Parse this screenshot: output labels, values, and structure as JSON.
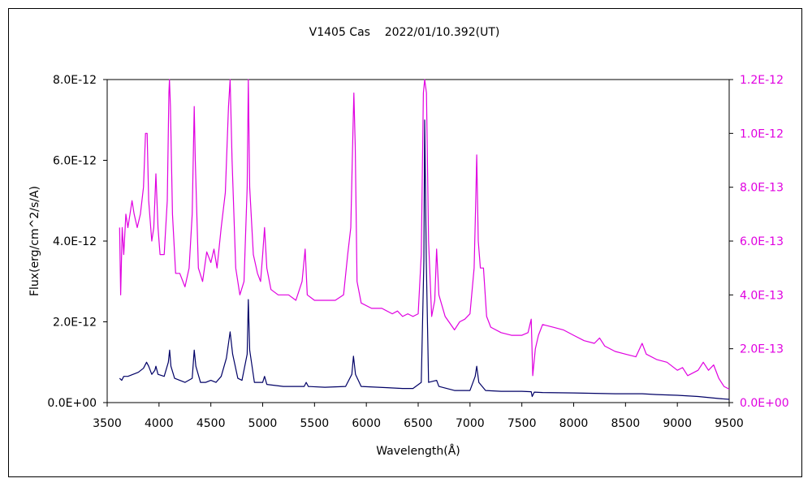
{
  "chart_data": {
    "type": "line",
    "title": "V1405 Cas    2022/01/10.392(UT)",
    "xlabel": "Wavelength(Å)",
    "ylabel_left": "Flux(erg/cm^2/s/A)",
    "xlim": [
      3500,
      9500
    ],
    "ylim_left": [
      0,
      8e-12
    ],
    "ylim_right": [
      0,
      1.2e-12
    ],
    "x_ticks": [
      "3500",
      "4000",
      "4500",
      "5000",
      "5500",
      "6000",
      "6500",
      "7000",
      "7500",
      "8000",
      "8500",
      "9000",
      "9500"
    ],
    "y_ticks_left": [
      "0.0E+00",
      "2.0E-12",
      "4.0E-12",
      "6.0E-12",
      "8.0E-12"
    ],
    "y_ticks_right": [
      "0.0E+00",
      "2.0E-13",
      "4.0E-13",
      "6.0E-13",
      "8.0E-13",
      "1.0E-12",
      "1.2E-12"
    ],
    "grid": false,
    "series": [
      {
        "axis": "left",
        "color": "#000066",
        "points": [
          [
            3620,
            6e-13
          ],
          [
            3640,
            5.5e-13
          ],
          [
            3660,
            6.5e-13
          ],
          [
            3700,
            6.5e-13
          ],
          [
            3750,
            7e-13
          ],
          [
            3800,
            7.5e-13
          ],
          [
            3850,
            8.5e-13
          ],
          [
            3880,
            1e-12
          ],
          [
            3900,
            9e-13
          ],
          [
            3930,
            7e-13
          ],
          [
            3960,
            8e-13
          ],
          [
            3970,
            9e-13
          ],
          [
            3990,
            7e-13
          ],
          [
            4050,
            6.5e-13
          ],
          [
            4090,
            1e-12
          ],
          [
            4102,
            1.3e-12
          ],
          [
            4115,
            9e-13
          ],
          [
            4150,
            6e-13
          ],
          [
            4250,
            5e-13
          ],
          [
            4320,
            6e-13
          ],
          [
            4340,
            1.3e-12
          ],
          [
            4355,
            9e-13
          ],
          [
            4400,
            5e-13
          ],
          [
            4450,
            5e-13
          ],
          [
            4500,
            5.5e-13
          ],
          [
            4550,
            5e-13
          ],
          [
            4600,
            6.5e-13
          ],
          [
            4650,
            1.1e-12
          ],
          [
            4686,
            1.75e-12
          ],
          [
            4710,
            1.2e-12
          ],
          [
            4760,
            6e-13
          ],
          [
            4800,
            5.5e-13
          ],
          [
            4850,
            1.2e-12
          ],
          [
            4861,
            2.55e-12
          ],
          [
            4875,
            1.3e-12
          ],
          [
            4920,
            5e-13
          ],
          [
            5000,
            5e-13
          ],
          [
            5018,
            6.5e-13
          ],
          [
            5040,
            4.5e-13
          ],
          [
            5200,
            4e-13
          ],
          [
            5400,
            4e-13
          ],
          [
            5420,
            5e-13
          ],
          [
            5440,
            4e-13
          ],
          [
            5600,
            3.8e-13
          ],
          [
            5800,
            4e-13
          ],
          [
            5860,
            7e-13
          ],
          [
            5876,
            1.15e-12
          ],
          [
            5895,
            7e-13
          ],
          [
            5950,
            4e-13
          ],
          [
            6200,
            3.7e-13
          ],
          [
            6350,
            3.5e-13
          ],
          [
            6450,
            3.5e-13
          ],
          [
            6530,
            5e-13
          ],
          [
            6555,
            3.5e-12
          ],
          [
            6563,
            7e-12
          ],
          [
            6578,
            3.5e-12
          ],
          [
            6600,
            5e-13
          ],
          [
            6678,
            5.5e-13
          ],
          [
            6700,
            4e-13
          ],
          [
            6850,
            3e-13
          ],
          [
            7000,
            3e-13
          ],
          [
            7050,
            6.5e-13
          ],
          [
            7065,
            9e-13
          ],
          [
            7085,
            5e-13
          ],
          [
            7150,
            3e-13
          ],
          [
            7300,
            2.8e-13
          ],
          [
            7500,
            2.8e-13
          ],
          [
            7590,
            2.7e-13
          ],
          [
            7600,
            1.5e-13
          ],
          [
            7620,
            2.6e-13
          ],
          [
            7700,
            2.5e-13
          ],
          [
            8000,
            2.4e-13
          ],
          [
            8200,
            2.3e-13
          ],
          [
            8400,
            2.2e-13
          ],
          [
            8500,
            2.2e-13
          ],
          [
            8660,
            2.2e-13
          ],
          [
            8800,
            2e-13
          ],
          [
            9000,
            1.8e-13
          ],
          [
            9200,
            1.5e-13
          ],
          [
            9400,
            1e-13
          ],
          [
            9500,
            8e-14
          ]
        ]
      },
      {
        "axis": "right",
        "color": "#e000e0",
        "points": [
          [
            3620,
            6.5e-13
          ],
          [
            3630,
            4e-13
          ],
          [
            3645,
            6.5e-13
          ],
          [
            3660,
            5.5e-13
          ],
          [
            3680,
            7e-13
          ],
          [
            3700,
            6.5e-13
          ],
          [
            3720,
            7e-13
          ],
          [
            3740,
            7.5e-13
          ],
          [
            3760,
            7e-13
          ],
          [
            3790,
            6.5e-13
          ],
          [
            3820,
            7e-13
          ],
          [
            3850,
            8e-13
          ],
          [
            3870,
            1e-12
          ],
          [
            3885,
            1e-12
          ],
          [
            3900,
            7.5e-13
          ],
          [
            3930,
            6e-13
          ],
          [
            3950,
            6.5e-13
          ],
          [
            3970,
            8.5e-13
          ],
          [
            3990,
            6.5e-13
          ],
          [
            4010,
            5.5e-13
          ],
          [
            4050,
            5.5e-13
          ],
          [
            4080,
            7.5e-13
          ],
          [
            4095,
            1.15e-12
          ],
          [
            4101,
            1.2e-12
          ],
          [
            4110,
            1.1e-12
          ],
          [
            4130,
            7e-13
          ],
          [
            4160,
            4.8e-13
          ],
          [
            4200,
            4.8e-13
          ],
          [
            4250,
            4.3e-13
          ],
          [
            4290,
            5e-13
          ],
          [
            4320,
            7e-13
          ],
          [
            4340,
            1.1e-12
          ],
          [
            4350,
            9e-13
          ],
          [
            4380,
            5e-13
          ],
          [
            4420,
            4.5e-13
          ],
          [
            4460,
            5.6e-13
          ],
          [
            4500,
            5.2e-13
          ],
          [
            4530,
            5.7e-13
          ],
          [
            4560,
            5e-13
          ],
          [
            4600,
            6.5e-13
          ],
          [
            4640,
            7.8e-13
          ],
          [
            4670,
            1.1e-12
          ],
          [
            4686,
            1.2e-12
          ],
          [
            4705,
            9e-13
          ],
          [
            4740,
            5e-13
          ],
          [
            4780,
            4e-13
          ],
          [
            4820,
            4.5e-13
          ],
          [
            4850,
            8e-13
          ],
          [
            4861,
            1.2e-12
          ],
          [
            4875,
            8e-13
          ],
          [
            4910,
            5.5e-13
          ],
          [
            4950,
            4.8e-13
          ],
          [
            4980,
            4.5e-13
          ],
          [
            5000,
            5.5e-13
          ],
          [
            5018,
            6.5e-13
          ],
          [
            5040,
            5e-13
          ],
          [
            5080,
            4.2e-13
          ],
          [
            5150,
            4e-13
          ],
          [
            5250,
            4e-13
          ],
          [
            5320,
            3.8e-13
          ],
          [
            5380,
            4.5e-13
          ],
          [
            5410,
            5.7e-13
          ],
          [
            5430,
            4e-13
          ],
          [
            5500,
            3.8e-13
          ],
          [
            5600,
            3.8e-13
          ],
          [
            5700,
            3.8e-13
          ],
          [
            5780,
            4e-13
          ],
          [
            5820,
            5.5e-13
          ],
          [
            5850,
            6.5e-13
          ],
          [
            5870,
            1e-12
          ],
          [
            5880,
            1.15e-12
          ],
          [
            5893,
            9.5e-13
          ],
          [
            5910,
            4.5e-13
          ],
          [
            5950,
            3.7e-13
          ],
          [
            6050,
            3.5e-13
          ],
          [
            6150,
            3.5e-13
          ],
          [
            6250,
            3.3e-13
          ],
          [
            6300,
            3.4e-13
          ],
          [
            6350,
            3.2e-13
          ],
          [
            6400,
            3.3e-13
          ],
          [
            6450,
            3.2e-13
          ],
          [
            6500,
            3.3e-13
          ],
          [
            6530,
            5.5e-13
          ],
          [
            6550,
            1.15e-12
          ],
          [
            6563,
            1.2e-12
          ],
          [
            6580,
            1.15e-12
          ],
          [
            6600,
            6e-13
          ],
          [
            6630,
            3.2e-13
          ],
          [
            6660,
            3.8e-13
          ],
          [
            6678,
            5.7e-13
          ],
          [
            6700,
            4e-13
          ],
          [
            6760,
            3.2e-13
          ],
          [
            6850,
            2.7e-13
          ],
          [
            6900,
            3e-13
          ],
          [
            6950,
            3.1e-13
          ],
          [
            7000,
            3.3e-13
          ],
          [
            7040,
            5e-13
          ],
          [
            7055,
            7.5e-13
          ],
          [
            7065,
            9.2e-13
          ],
          [
            7080,
            6e-13
          ],
          [
            7100,
            5e-13
          ],
          [
            7130,
            5e-13
          ],
          [
            7160,
            3.2e-13
          ],
          [
            7200,
            2.8e-13
          ],
          [
            7300,
            2.6e-13
          ],
          [
            7400,
            2.5e-13
          ],
          [
            7500,
            2.5e-13
          ],
          [
            7560,
            2.6e-13
          ],
          [
            7590,
            3.1e-13
          ],
          [
            7605,
            1e-13
          ],
          [
            7630,
            2e-13
          ],
          [
            7660,
            2.5e-13
          ],
          [
            7700,
            2.9e-13
          ],
          [
            7800,
            2.8e-13
          ],
          [
            7900,
            2.7e-13
          ],
          [
            8000,
            2.5e-13
          ],
          [
            8100,
            2.3e-13
          ],
          [
            8200,
            2.2e-13
          ],
          [
            8250,
            2.4e-13
          ],
          [
            8300,
            2.1e-13
          ],
          [
            8400,
            1.9e-13
          ],
          [
            8500,
            1.8e-13
          ],
          [
            8600,
            1.7e-13
          ],
          [
            8660,
            2.2e-13
          ],
          [
            8700,
            1.8e-13
          ],
          [
            8800,
            1.6e-13
          ],
          [
            8900,
            1.5e-13
          ],
          [
            9000,
            1.2e-13
          ],
          [
            9050,
            1.3e-13
          ],
          [
            9100,
            1e-13
          ],
          [
            9200,
            1.2e-13
          ],
          [
            9250,
            1.5e-13
          ],
          [
            9300,
            1.2e-13
          ],
          [
            9350,
            1.4e-13
          ],
          [
            9400,
            9e-14
          ],
          [
            9450,
            6e-14
          ],
          [
            9500,
            5e-14
          ]
        ]
      }
    ]
  }
}
